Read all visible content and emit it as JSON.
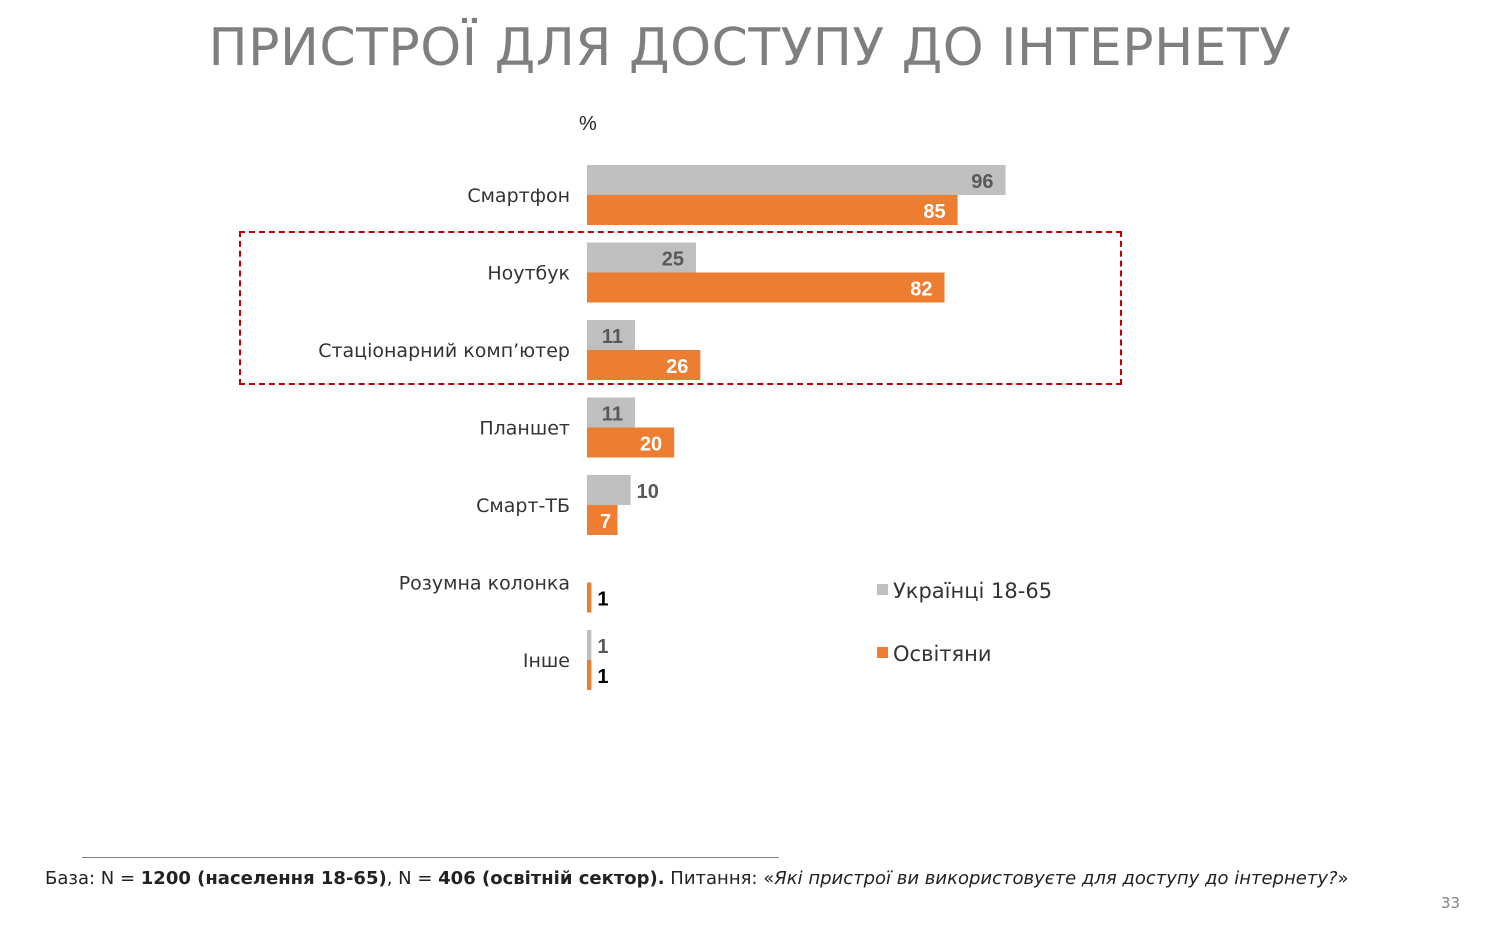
{
  "title": "ПРИСТРОЇ ДЛЯ ДОСТУПУ ДО ІНТЕРНЕТУ",
  "chart_data": {
    "type": "bar",
    "orientation": "horizontal",
    "unit_label": "%",
    "categories": [
      "Смартфон",
      "Ноутбук",
      "Стаціонарний комп’ютер",
      "Планшет",
      "Смарт-ТБ",
      "Розумна колонка",
      "Інше"
    ],
    "series": [
      {
        "name": "Українці 18-65",
        "color": "#bfbfbf",
        "values": [
          96,
          25,
          11,
          11,
          10,
          null,
          1
        ]
      },
      {
        "name": "Освітяни",
        "color": "#ed7d31",
        "values": [
          85,
          82,
          26,
          20,
          7,
          1,
          1
        ]
      }
    ],
    "xlim": [
      0,
      100
    ],
    "grid": false,
    "legend_position": "right",
    "highlighted_categories": [
      "Ноутбук",
      "Стаціонарний комп’ютер"
    ],
    "highlight_color": "#c00000"
  },
  "footnote": {
    "base_prefix": "База: N = ",
    "n1": "1200 (населення 18-65)",
    "sep": ", N = ",
    "n2": "406 (освітній сектор).",
    "question_prefix": " Питання: «",
    "question": "Які пристрої ви використовуєте для доступу до інтернету?",
    "question_suffix": "»"
  },
  "page_number": "33"
}
